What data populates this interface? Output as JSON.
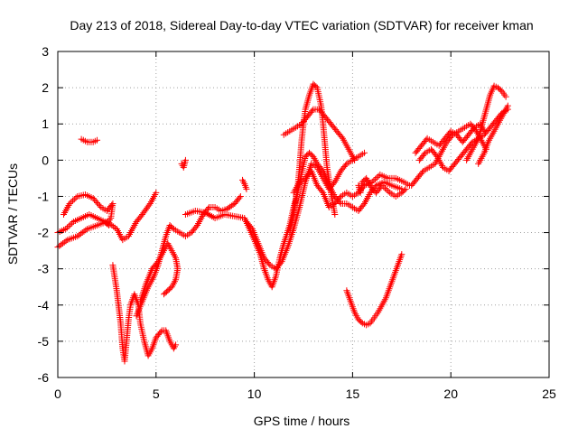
{
  "chart_data": {
    "type": "scatter",
    "title": "Day 213 of 2018, Sidereal Day-to-day VTEC variation (SDTVAR) for receiver kman",
    "xlabel": "GPS time / hours",
    "ylabel": "SDTVAR / TECUs",
    "xlim": [
      0,
      25
    ],
    "ylim": [
      -6,
      3
    ],
    "x_ticks": [
      0,
      5,
      10,
      15,
      20,
      25
    ],
    "y_ticks": [
      -6,
      -5,
      -4,
      -3,
      -2,
      -1,
      0,
      1,
      2,
      3
    ],
    "x_tick_labels": [
      "0",
      "5",
      "10",
      "15",
      "20",
      "25"
    ],
    "y_tick_labels": [
      "-6",
      "-5",
      "-4",
      "-3",
      "-2",
      "-1",
      "0",
      "1",
      "2",
      "3"
    ],
    "grid": true,
    "legend": "none",
    "marker": "+",
    "color": "#ff0000",
    "series": [
      {
        "points": [
          [
            0.0,
            -2.4
          ],
          [
            0.5,
            -2.2
          ],
          [
            1.0,
            -2.1
          ],
          [
            1.5,
            -1.9
          ],
          [
            2.0,
            -1.8
          ],
          [
            2.5,
            -1.7
          ],
          [
            3.0,
            -1.9
          ],
          [
            3.3,
            -2.2
          ],
          [
            3.6,
            -2.1
          ],
          [
            4.0,
            -1.7
          ],
          [
            4.3,
            -1.5
          ],
          [
            4.7,
            -1.2
          ],
          [
            5.0,
            -0.9
          ]
        ]
      },
      {
        "points": [
          [
            0.0,
            -2.0
          ],
          [
            0.4,
            -1.9
          ],
          [
            0.8,
            -1.7
          ],
          [
            1.2,
            -1.6
          ],
          [
            1.6,
            -1.5
          ],
          [
            2.0,
            -1.6
          ],
          [
            2.4,
            -1.7
          ],
          [
            2.6,
            -1.8
          ]
        ]
      },
      {
        "points": [
          [
            0.3,
            -1.5
          ],
          [
            0.6,
            -1.2
          ],
          [
            1.0,
            -1.0
          ],
          [
            1.4,
            -0.95
          ],
          [
            1.8,
            -1.05
          ],
          [
            2.2,
            -1.3
          ],
          [
            2.5,
            -1.4
          ],
          [
            2.8,
            -1.2
          ],
          [
            2.7,
            -1.6
          ],
          [
            2.5,
            -1.75
          ]
        ]
      },
      {
        "points": [
          [
            1.2,
            0.58
          ],
          [
            1.5,
            0.5
          ],
          [
            1.8,
            0.5
          ],
          [
            2.0,
            0.55
          ]
        ]
      },
      {
        "points": [
          [
            2.8,
            -2.9
          ],
          [
            3.0,
            -3.6
          ],
          [
            3.2,
            -4.5
          ],
          [
            3.3,
            -5.2
          ],
          [
            3.4,
            -5.55
          ],
          [
            3.5,
            -5.0
          ],
          [
            3.6,
            -4.4
          ],
          [
            3.7,
            -4.0
          ],
          [
            3.9,
            -3.7
          ],
          [
            4.1,
            -4.0
          ],
          [
            4.2,
            -4.5
          ],
          [
            4.4,
            -5.0
          ],
          [
            4.6,
            -5.4
          ],
          [
            4.8,
            -5.2
          ],
          [
            5.0,
            -4.9
          ],
          [
            5.3,
            -4.7
          ],
          [
            5.5,
            -4.7
          ],
          [
            5.7,
            -5.0
          ],
          [
            5.9,
            -5.2
          ],
          [
            6.0,
            -5.1
          ]
        ]
      },
      {
        "points": [
          [
            4.2,
            -3.9
          ],
          [
            4.5,
            -3.4
          ],
          [
            4.8,
            -3.0
          ],
          [
            5.1,
            -2.8
          ],
          [
            5.4,
            -2.5
          ],
          [
            5.6,
            -2.3
          ],
          [
            5.8,
            -2.5
          ],
          [
            6.0,
            -2.7
          ],
          [
            6.1,
            -3.0
          ],
          [
            6.0,
            -3.3
          ],
          [
            5.8,
            -3.5
          ],
          [
            5.6,
            -3.6
          ],
          [
            5.4,
            -3.7
          ]
        ]
      },
      {
        "points": [
          [
            4.0,
            -4.3
          ],
          [
            4.3,
            -3.9
          ],
          [
            4.6,
            -3.5
          ],
          [
            4.9,
            -3.2
          ],
          [
            5.1,
            -2.9
          ],
          [
            5.3,
            -2.5
          ],
          [
            5.5,
            -2.1
          ],
          [
            5.7,
            -1.8
          ],
          [
            5.9,
            -1.9
          ],
          [
            6.2,
            -2.0
          ],
          [
            6.5,
            -2.1
          ],
          [
            6.8,
            -2.0
          ],
          [
            7.1,
            -1.8
          ],
          [
            7.4,
            -1.5
          ],
          [
            7.7,
            -1.3
          ],
          [
            8.0,
            -1.3
          ],
          [
            8.3,
            -1.4
          ],
          [
            8.6,
            -1.35
          ],
          [
            9.0,
            -1.2
          ],
          [
            9.3,
            -1.0
          ]
        ]
      },
      {
        "points": [
          [
            6.5,
            -1.5
          ],
          [
            7.0,
            -1.4
          ],
          [
            7.5,
            -1.45
          ],
          [
            8.0,
            -1.6
          ],
          [
            8.5,
            -1.5
          ],
          [
            9.0,
            -1.55
          ],
          [
            9.5,
            -1.6
          ],
          [
            10.0,
            -2.2
          ],
          [
            10.3,
            -2.6
          ],
          [
            10.5,
            -3.0
          ],
          [
            10.7,
            -3.3
          ],
          [
            10.9,
            -3.5
          ],
          [
            11.1,
            -3.2
          ],
          [
            11.3,
            -2.7
          ],
          [
            11.5,
            -2.3
          ],
          [
            11.8,
            -1.8
          ],
          [
            12.0,
            -1.3
          ],
          [
            12.2,
            -0.9
          ],
          [
            12.4,
            -0.4
          ],
          [
            12.6,
            0.1
          ],
          [
            12.8,
            0.2
          ],
          [
            13.0,
            0.1
          ],
          [
            13.2,
            -0.1
          ],
          [
            13.5,
            -0.3
          ],
          [
            13.8,
            -0.7
          ],
          [
            14.1,
            -1.0
          ],
          [
            14.4,
            -1.2
          ],
          [
            14.7,
            -1.2
          ],
          [
            15.0,
            -1.3
          ],
          [
            15.3,
            -1.4
          ],
          [
            15.6,
            -1.2
          ],
          [
            15.9,
            -0.9
          ],
          [
            16.2,
            -0.7
          ],
          [
            16.6,
            -0.6
          ],
          [
            17.0,
            -0.7
          ],
          [
            17.5,
            -0.8
          ]
        ]
      },
      {
        "points": [
          [
            9.6,
            -1.7
          ],
          [
            9.9,
            -1.9
          ],
          [
            10.2,
            -2.3
          ],
          [
            10.5,
            -2.7
          ],
          [
            10.8,
            -2.9
          ],
          [
            11.1,
            -3.0
          ],
          [
            11.4,
            -2.8
          ],
          [
            11.7,
            -2.4
          ],
          [
            12.0,
            -1.9
          ],
          [
            12.3,
            -1.3
          ],
          [
            12.6,
            -0.6
          ],
          [
            12.9,
            -0.1
          ],
          [
            13.2,
            -0.2
          ],
          [
            13.5,
            -0.5
          ],
          [
            13.8,
            -0.8
          ],
          [
            14.1,
            -0.6
          ],
          [
            14.4,
            -0.3
          ],
          [
            14.7,
            -0.1
          ],
          [
            15.0,
            0.0
          ],
          [
            15.3,
            0.1
          ],
          [
            15.6,
            0.2
          ]
        ]
      },
      {
        "points": [
          [
            11.8,
            -2.0
          ],
          [
            12.0,
            -1.5
          ],
          [
            12.2,
            -0.8
          ],
          [
            12.3,
            -0.2
          ],
          [
            12.4,
            0.5
          ],
          [
            12.5,
            1.0
          ],
          [
            12.6,
            1.4
          ],
          [
            12.8,
            1.8
          ],
          [
            13.0,
            2.1
          ],
          [
            13.2,
            2.0
          ],
          [
            13.4,
            1.5
          ],
          [
            13.5,
            1.0
          ],
          [
            13.6,
            0.4
          ],
          [
            13.7,
            -0.2
          ],
          [
            13.9,
            -0.9
          ],
          [
            14.1,
            -1.5
          ]
        ]
      },
      {
        "points": [
          [
            11.5,
            0.7
          ],
          [
            11.8,
            0.8
          ],
          [
            12.1,
            0.9
          ],
          [
            12.4,
            1.0
          ],
          [
            12.7,
            1.2
          ],
          [
            13.0,
            1.4
          ],
          [
            13.3,
            1.4
          ],
          [
            13.6,
            1.2
          ],
          [
            13.9,
            1.0
          ],
          [
            14.2,
            0.8
          ],
          [
            14.5,
            0.6
          ],
          [
            14.8,
            0.3
          ],
          [
            15.1,
            0.0
          ]
        ]
      },
      {
        "points": [
          [
            12.0,
            -0.9
          ],
          [
            12.3,
            -0.6
          ],
          [
            12.6,
            -0.5
          ],
          [
            12.9,
            -0.3
          ],
          [
            13.2,
            -0.7
          ],
          [
            13.5,
            -0.9
          ],
          [
            13.8,
            -1.3
          ],
          [
            14.1,
            -1.2
          ],
          [
            14.4,
            -1.0
          ],
          [
            14.7,
            -0.9
          ],
          [
            15.0,
            -1.0
          ],
          [
            15.3,
            -0.9
          ],
          [
            15.6,
            -0.7
          ],
          [
            16.0,
            -0.6
          ],
          [
            16.4,
            -0.4
          ],
          [
            16.8,
            -0.5
          ],
          [
            17.2,
            -0.5
          ],
          [
            17.6,
            -0.6
          ],
          [
            17.9,
            -0.7
          ]
        ]
      },
      {
        "points": [
          [
            15.3,
            -0.7
          ],
          [
            15.4,
            -0.9
          ],
          [
            15.5,
            -0.6
          ],
          [
            15.7,
            -0.5
          ],
          [
            16.0,
            -0.8
          ],
          [
            16.2,
            -0.9
          ],
          [
            16.5,
            -0.7
          ],
          [
            16.9,
            -0.9
          ],
          [
            17.2,
            -1.0
          ],
          [
            17.5,
            -0.9
          ],
          [
            17.7,
            -0.8
          ]
        ]
      },
      {
        "points": [
          [
            14.7,
            -3.6
          ],
          [
            14.9,
            -3.9
          ],
          [
            15.1,
            -4.2
          ],
          [
            15.3,
            -4.4
          ],
          [
            15.5,
            -4.5
          ],
          [
            15.7,
            -4.55
          ],
          [
            15.9,
            -4.5
          ],
          [
            16.1,
            -4.35
          ],
          [
            16.3,
            -4.2
          ],
          [
            16.5,
            -4.0
          ],
          [
            16.7,
            -3.8
          ],
          [
            16.9,
            -3.5
          ],
          [
            17.1,
            -3.2
          ],
          [
            17.3,
            -2.9
          ],
          [
            17.5,
            -2.6
          ]
        ]
      },
      {
        "points": [
          [
            18.2,
            0.2
          ],
          [
            18.5,
            0.4
          ],
          [
            18.8,
            0.6
          ],
          [
            19.1,
            0.5
          ],
          [
            19.4,
            0.4
          ],
          [
            19.7,
            0.6
          ],
          [
            20.0,
            0.8
          ],
          [
            20.3,
            0.7
          ],
          [
            20.6,
            0.5
          ],
          [
            20.9,
            0.7
          ],
          [
            21.2,
            0.9
          ],
          [
            21.5,
            1.0
          ],
          [
            21.7,
            0.8
          ]
        ]
      },
      {
        "points": [
          [
            18.0,
            -0.7
          ],
          [
            18.3,
            -0.5
          ],
          [
            18.6,
            -0.3
          ],
          [
            18.9,
            -0.2
          ],
          [
            19.2,
            -0.1
          ],
          [
            19.5,
            0.2
          ],
          [
            19.8,
            0.5
          ],
          [
            20.1,
            0.7
          ],
          [
            20.4,
            0.8
          ],
          [
            20.7,
            0.9
          ],
          [
            21.0,
            1.0
          ],
          [
            21.3,
            0.8
          ],
          [
            21.6,
            0.5
          ],
          [
            21.8,
            0.3
          ]
        ]
      },
      {
        "points": [
          [
            18.4,
            0.0
          ],
          [
            18.7,
            0.2
          ],
          [
            19.0,
            0.3
          ],
          [
            19.3,
            0.1
          ],
          [
            19.6,
            -0.2
          ],
          [
            19.9,
            -0.3
          ],
          [
            20.2,
            -0.1
          ],
          [
            20.5,
            0.1
          ],
          [
            20.8,
            0.3
          ],
          [
            21.1,
            0.5
          ],
          [
            21.4,
            0.6
          ],
          [
            21.7,
            0.7
          ],
          [
            22.0,
            0.9
          ],
          [
            22.3,
            1.1
          ],
          [
            22.6,
            1.3
          ],
          [
            22.9,
            1.4
          ]
        ]
      },
      {
        "points": [
          [
            20.8,
            0.0
          ],
          [
            21.1,
            0.3
          ],
          [
            21.4,
            0.6
          ],
          [
            21.6,
            1.0
          ],
          [
            21.8,
            1.4
          ],
          [
            22.0,
            1.8
          ],
          [
            22.2,
            2.05
          ],
          [
            22.4,
            2.0
          ],
          [
            22.6,
            1.9
          ],
          [
            22.8,
            1.75
          ]
        ]
      },
      {
        "points": [
          [
            21.4,
            -0.1
          ],
          [
            21.7,
            0.2
          ],
          [
            21.9,
            0.5
          ],
          [
            22.2,
            0.8
          ],
          [
            22.5,
            1.1
          ],
          [
            22.7,
            1.3
          ],
          [
            22.9,
            1.5
          ]
        ]
      },
      {
        "points": [
          [
            6.3,
            -0.1
          ],
          [
            6.4,
            -0.2
          ],
          [
            6.5,
            0.0
          ]
        ]
      },
      {
        "points": [
          [
            9.4,
            -0.55
          ],
          [
            9.5,
            -0.65
          ],
          [
            9.6,
            -0.8
          ]
        ]
      }
    ]
  }
}
